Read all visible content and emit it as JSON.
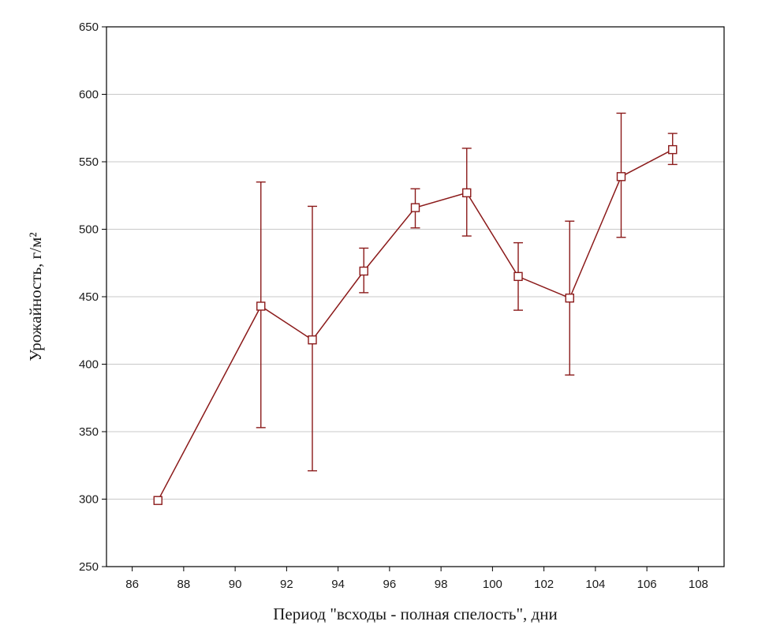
{
  "chart_data": {
    "type": "line",
    "title": "",
    "xlabel": "Период \"всходы - полная спелость\", дни",
    "ylabel": "Урожайность, г/м²",
    "xlim": [
      85,
      109
    ],
    "ylim": [
      250,
      650
    ],
    "x_ticks": [
      86,
      88,
      90,
      92,
      94,
      96,
      98,
      100,
      102,
      104,
      106,
      108
    ],
    "y_ticks": [
      250,
      300,
      350,
      400,
      450,
      500,
      550,
      600,
      650
    ],
    "grid": "horizontal",
    "series": [
      {
        "color": "#8b1a1a",
        "marker": "square",
        "error_bars": true,
        "points": [
          {
            "x": 87,
            "y": 299,
            "low": 299,
            "high": 299
          },
          {
            "x": 91,
            "y": 443,
            "low": 353,
            "high": 535
          },
          {
            "x": 93,
            "y": 418,
            "low": 321,
            "high": 517
          },
          {
            "x": 95,
            "y": 469,
            "low": 453,
            "high": 486
          },
          {
            "x": 97,
            "y": 516,
            "low": 501,
            "high": 530
          },
          {
            "x": 99,
            "y": 527,
            "low": 495,
            "high": 560
          },
          {
            "x": 101,
            "y": 465,
            "low": 440,
            "high": 490
          },
          {
            "x": 103,
            "y": 449,
            "low": 392,
            "high": 506
          },
          {
            "x": 105,
            "y": 539,
            "low": 494,
            "high": 586
          },
          {
            "x": 107,
            "y": 559,
            "low": 548,
            "high": 571
          }
        ]
      }
    ]
  }
}
